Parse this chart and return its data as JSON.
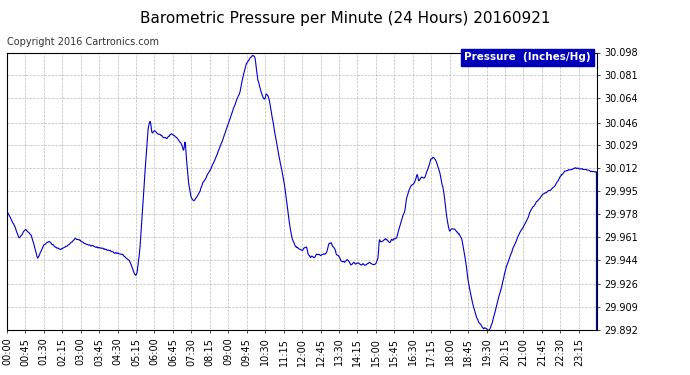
{
  "title": "Barometric Pressure per Minute (24 Hours) 20160921",
  "copyright": "Copyright 2016 Cartronics.com",
  "legend_label": "Pressure  (Inches/Hg)",
  "ylabel_values": [
    29.892,
    29.909,
    29.926,
    29.944,
    29.961,
    29.978,
    29.995,
    30.012,
    30.029,
    30.046,
    30.064,
    30.081,
    30.098
  ],
  "ylim": [
    29.892,
    30.098
  ],
  "line_color": "#0000cc",
  "background_color": "#ffffff",
  "grid_color": "#aaaaaa",
  "title_fontsize": 11,
  "copyright_fontsize": 7,
  "tick_fontsize": 7,
  "legend_fontsize": 7.5,
  "x_tick_labels": [
    "00:00",
    "00:45",
    "01:30",
    "02:15",
    "03:00",
    "03:45",
    "04:30",
    "05:15",
    "06:00",
    "06:45",
    "07:30",
    "08:15",
    "09:00",
    "09:45",
    "10:30",
    "11:15",
    "12:00",
    "12:45",
    "13:30",
    "14:15",
    "15:00",
    "15:45",
    "16:30",
    "17:15",
    "18:00",
    "18:45",
    "19:30",
    "20:15",
    "21:00",
    "21:45",
    "22:30",
    "23:15"
  ],
  "keypoints": [
    [
      0.0,
      29.98
    ],
    [
      0.3,
      29.97
    ],
    [
      0.5,
      29.96
    ],
    [
      0.75,
      29.967
    ],
    [
      1.0,
      29.962
    ],
    [
      1.25,
      29.945
    ],
    [
      1.5,
      29.955
    ],
    [
      1.7,
      29.958
    ],
    [
      2.0,
      29.953
    ],
    [
      2.2,
      29.952
    ],
    [
      2.5,
      29.955
    ],
    [
      2.8,
      29.96
    ],
    [
      3.0,
      29.958
    ],
    [
      3.2,
      29.956
    ],
    [
      3.5,
      29.954
    ],
    [
      3.8,
      29.953
    ],
    [
      4.0,
      29.952
    ],
    [
      4.3,
      29.95
    ],
    [
      4.7,
      29.948
    ],
    [
      5.0,
      29.943
    ],
    [
      5.1,
      29.938
    ],
    [
      5.2,
      29.933
    ],
    [
      5.25,
      29.932
    ],
    [
      5.3,
      29.935
    ],
    [
      5.4,
      29.95
    ],
    [
      5.5,
      29.975
    ],
    [
      5.6,
      30.005
    ],
    [
      5.7,
      30.03
    ],
    [
      5.75,
      30.043
    ],
    [
      5.83,
      30.048
    ],
    [
      5.87,
      30.042
    ],
    [
      5.9,
      30.038
    ],
    [
      6.0,
      30.04
    ],
    [
      6.1,
      30.038
    ],
    [
      6.2,
      30.037
    ],
    [
      6.3,
      30.036
    ],
    [
      6.4,
      30.035
    ],
    [
      6.5,
      30.034
    ],
    [
      6.6,
      30.036
    ],
    [
      6.7,
      30.038
    ],
    [
      6.75,
      30.037
    ],
    [
      6.9,
      30.035
    ],
    [
      7.0,
      30.032
    ],
    [
      7.1,
      30.03
    ],
    [
      7.2,
      30.025
    ],
    [
      7.25,
      30.034
    ],
    [
      7.3,
      30.02
    ],
    [
      7.4,
      30.0
    ],
    [
      7.5,
      29.99
    ],
    [
      7.6,
      29.988
    ],
    [
      7.7,
      29.99
    ],
    [
      7.8,
      29.993
    ],
    [
      8.0,
      30.002
    ],
    [
      8.25,
      30.01
    ],
    [
      8.5,
      30.02
    ],
    [
      8.75,
      30.032
    ],
    [
      9.0,
      30.045
    ],
    [
      9.25,
      30.058
    ],
    [
      9.4,
      30.065
    ],
    [
      9.5,
      30.07
    ],
    [
      9.6,
      30.08
    ],
    [
      9.75,
      30.09
    ],
    [
      9.9,
      30.094
    ],
    [
      10.0,
      30.096
    ],
    [
      10.05,
      30.095
    ],
    [
      10.1,
      30.094
    ],
    [
      10.2,
      30.078
    ],
    [
      10.25,
      30.075
    ],
    [
      10.35,
      30.068
    ],
    [
      10.4,
      30.065
    ],
    [
      10.5,
      30.063
    ],
    [
      10.55,
      30.068
    ],
    [
      10.65,
      30.065
    ],
    [
      10.75,
      30.055
    ],
    [
      10.9,
      30.038
    ],
    [
      11.0,
      30.028
    ],
    [
      11.1,
      30.018
    ],
    [
      11.25,
      30.005
    ],
    [
      11.4,
      29.985
    ],
    [
      11.5,
      29.97
    ],
    [
      11.6,
      29.96
    ],
    [
      11.75,
      29.954
    ],
    [
      11.9,
      29.952
    ],
    [
      12.0,
      29.951
    ],
    [
      12.1,
      29.953
    ],
    [
      12.2,
      29.954
    ],
    [
      12.25,
      29.948
    ],
    [
      12.35,
      29.946
    ],
    [
      12.4,
      29.947
    ],
    [
      12.5,
      29.946
    ],
    [
      12.6,
      29.948
    ],
    [
      12.7,
      29.948
    ],
    [
      12.75,
      29.947
    ],
    [
      12.85,
      29.948
    ],
    [
      13.0,
      29.949
    ],
    [
      13.1,
      29.956
    ],
    [
      13.2,
      29.957
    ],
    [
      13.25,
      29.954
    ],
    [
      13.35,
      29.952
    ],
    [
      13.4,
      29.948
    ],
    [
      13.5,
      29.947
    ],
    [
      13.6,
      29.943
    ],
    [
      13.75,
      29.942
    ],
    [
      13.85,
      29.945
    ],
    [
      14.0,
      29.94
    ],
    [
      14.1,
      29.942
    ],
    [
      14.2,
      29.941
    ],
    [
      14.3,
      29.942
    ],
    [
      14.4,
      29.94
    ],
    [
      14.5,
      29.941
    ],
    [
      14.6,
      29.94
    ],
    [
      14.75,
      29.942
    ],
    [
      14.9,
      29.94
    ],
    [
      15.0,
      29.941
    ],
    [
      15.1,
      29.945
    ],
    [
      15.15,
      29.96
    ],
    [
      15.2,
      29.957
    ],
    [
      15.3,
      29.958
    ],
    [
      15.4,
      29.96
    ],
    [
      15.5,
      29.958
    ],
    [
      15.6,
      29.957
    ],
    [
      15.65,
      29.96
    ],
    [
      15.7,
      29.958
    ],
    [
      15.75,
      29.96
    ],
    [
      15.85,
      29.96
    ],
    [
      16.0,
      29.97
    ],
    [
      16.1,
      29.976
    ],
    [
      16.2,
      29.981
    ],
    [
      16.25,
      29.99
    ],
    [
      16.35,
      29.995
    ],
    [
      16.4,
      29.998
    ],
    [
      16.5,
      30.0
    ],
    [
      16.6,
      30.002
    ],
    [
      16.65,
      30.005
    ],
    [
      16.7,
      30.008
    ],
    [
      16.75,
      30.002
    ],
    [
      16.85,
      30.005
    ],
    [
      17.0,
      30.005
    ],
    [
      17.1,
      30.01
    ],
    [
      17.15,
      30.013
    ],
    [
      17.2,
      30.016
    ],
    [
      17.25,
      30.019
    ],
    [
      17.35,
      30.02
    ],
    [
      17.45,
      30.018
    ],
    [
      17.5,
      30.015
    ],
    [
      17.6,
      30.01
    ],
    [
      17.7,
      30.0
    ],
    [
      17.75,
      29.998
    ],
    [
      17.9,
      29.975
    ],
    [
      18.0,
      29.965
    ],
    [
      18.1,
      29.967
    ],
    [
      18.2,
      29.967
    ],
    [
      18.3,
      29.965
    ],
    [
      18.4,
      29.963
    ],
    [
      18.5,
      29.96
    ],
    [
      18.6,
      29.95
    ],
    [
      18.7,
      29.938
    ],
    [
      18.75,
      29.93
    ],
    [
      18.9,
      29.915
    ],
    [
      19.0,
      29.908
    ],
    [
      19.1,
      29.902
    ],
    [
      19.2,
      29.898
    ],
    [
      19.3,
      29.895
    ],
    [
      19.4,
      29.893
    ],
    [
      19.5,
      29.893
    ],
    [
      19.55,
      29.892
    ],
    [
      19.6,
      29.892
    ],
    [
      19.65,
      29.893
    ],
    [
      19.7,
      29.895
    ],
    [
      19.75,
      29.898
    ],
    [
      19.85,
      29.905
    ],
    [
      20.0,
      29.916
    ],
    [
      20.1,
      29.922
    ],
    [
      20.2,
      29.93
    ],
    [
      20.3,
      29.938
    ],
    [
      20.4,
      29.943
    ],
    [
      20.5,
      29.948
    ],
    [
      20.6,
      29.953
    ],
    [
      20.7,
      29.957
    ],
    [
      20.75,
      29.96
    ],
    [
      20.85,
      29.964
    ],
    [
      21.0,
      29.968
    ],
    [
      21.1,
      29.972
    ],
    [
      21.2,
      29.975
    ],
    [
      21.25,
      29.978
    ],
    [
      21.35,
      29.982
    ],
    [
      21.5,
      29.986
    ],
    [
      21.6,
      29.988
    ],
    [
      21.7,
      29.99
    ],
    [
      21.75,
      29.992
    ],
    [
      21.85,
      29.993
    ],
    [
      22.0,
      29.995
    ],
    [
      22.1,
      29.996
    ],
    [
      22.2,
      29.997
    ],
    [
      22.25,
      29.998
    ],
    [
      22.4,
      30.002
    ],
    [
      22.5,
      30.006
    ],
    [
      22.6,
      30.008
    ],
    [
      22.7,
      30.01
    ],
    [
      22.75,
      30.01
    ],
    [
      22.85,
      30.011
    ],
    [
      23.0,
      30.011
    ],
    [
      23.1,
      30.012
    ],
    [
      23.15,
      30.012
    ],
    [
      23.25,
      30.012
    ],
    [
      23.5,
      30.011
    ],
    [
      23.75,
      30.01
    ],
    [
      24.0,
      30.009
    ]
  ]
}
